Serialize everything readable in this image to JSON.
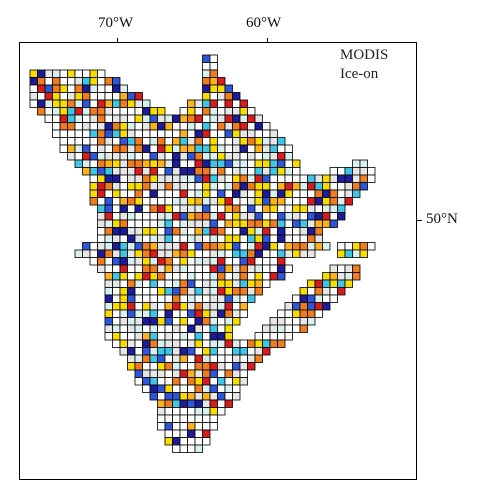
{
  "map": {
    "title_line1": "MODIS",
    "title_line2": "Ice-on",
    "lon_labels": [
      "70°W",
      "60°W"
    ],
    "lat_labels": [
      "50°N"
    ],
    "cell_colors": {
      "w": "#ffffff",
      "g": "#e6e6e6",
      "l": "#d8f1f0",
      "c": "#3fc6e6",
      "b": "#2f55d8",
      "n": "#1c1c9a",
      "y": "#f8dc00",
      "s": "#fbb21c",
      "o": "#ef7d1f",
      "r": "#d61c1c",
      "outline": "#000000"
    }
  }
}
